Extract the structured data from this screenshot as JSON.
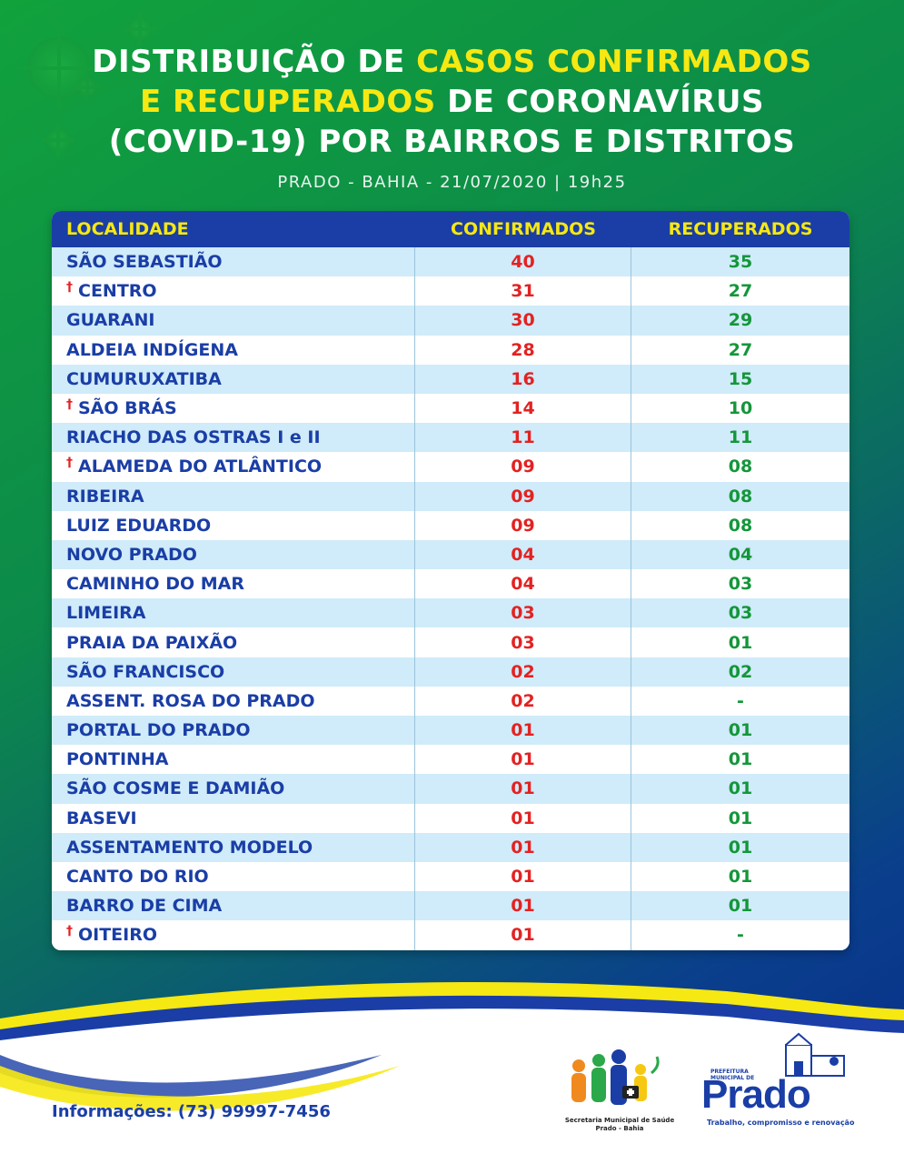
{
  "header": {
    "title_part1": "DISTRIBUIÇÃO DE ",
    "title_hl1": "CASOS CONFIRMADOS",
    "title_hl2": "E RECUPERADOS",
    "title_part2": " DE CORONAVÍRUS",
    "title_line3": "(COVID-19) POR BAIRROS E DISTRITOS",
    "subtitle": "PRADO - BAHIA - 21/07/2020 | 19h25"
  },
  "table": {
    "columns": [
      "LOCALIDADE",
      "CONFIRMADOS",
      "RECUPERADOS"
    ],
    "cross_symbol": "†",
    "rows": [
      {
        "name": "SÃO SEBASTIÃO",
        "confirmed": "40",
        "recovered": "35",
        "death": false
      },
      {
        "name": "CENTRO",
        "confirmed": "31",
        "recovered": "27",
        "death": true
      },
      {
        "name": "GUARANI",
        "confirmed": "30",
        "recovered": "29",
        "death": false
      },
      {
        "name": "ALDEIA INDÍGENA",
        "confirmed": "28",
        "recovered": "27",
        "death": false
      },
      {
        "name": "CUMURUXATIBA",
        "confirmed": "16",
        "recovered": "15",
        "death": false
      },
      {
        "name": "SÃO BRÁS",
        "confirmed": "14",
        "recovered": "10",
        "death": true
      },
      {
        "name": "RIACHO DAS OSTRAS I e II",
        "confirmed": "11",
        "recovered": "11",
        "death": false
      },
      {
        "name": "ALAMEDA DO ATLÂNTICO",
        "confirmed": "09",
        "recovered": "08",
        "death": true
      },
      {
        "name": "RIBEIRA",
        "confirmed": "09",
        "recovered": "08",
        "death": false
      },
      {
        "name": "LUIZ EDUARDO",
        "confirmed": "09",
        "recovered": "08",
        "death": false
      },
      {
        "name": "NOVO PRADO",
        "confirmed": "04",
        "recovered": "04",
        "death": false
      },
      {
        "name": "CAMINHO DO MAR",
        "confirmed": "04",
        "recovered": "03",
        "death": false
      },
      {
        "name": "LIMEIRA",
        "confirmed": "03",
        "recovered": "03",
        "death": false
      },
      {
        "name": "PRAIA DA PAIXÃO",
        "confirmed": "03",
        "recovered": "01",
        "death": false
      },
      {
        "name": "SÃO FRANCISCO",
        "confirmed": "02",
        "recovered": "02",
        "death": false
      },
      {
        "name": "ASSENT. ROSA DO PRADO",
        "confirmed": "02",
        "recovered": "-",
        "death": false
      },
      {
        "name": "PORTAL DO PRADO",
        "confirmed": "01",
        "recovered": "01",
        "death": false
      },
      {
        "name": "PONTINHA",
        "confirmed": "01",
        "recovered": "01",
        "death": false
      },
      {
        "name": "SÃO COSME E DAMIÃO",
        "confirmed": "01",
        "recovered": "01",
        "death": false
      },
      {
        "name": "BASEVI",
        "confirmed": "01",
        "recovered": "01",
        "death": false
      },
      {
        "name": "ASSENTAMENTO MODELO",
        "confirmed": "01",
        "recovered": "01",
        "death": false
      },
      {
        "name": "CANTO DO RIO",
        "confirmed": "01",
        "recovered": "01",
        "death": false
      },
      {
        "name": "BARRO DE CIMA",
        "confirmed": "01",
        "recovered": "01",
        "death": false
      },
      {
        "name": "OITEIRO",
        "confirmed": "01",
        "recovered": "-",
        "death": true
      }
    ]
  },
  "footer": {
    "contact": "Informações: (73) 99997-7456",
    "secretaria_line1": "Secretaria Municipal de Saúde",
    "secretaria_line2": "Prado - Bahia",
    "prefeitura_line1": "PREFEITURA",
    "prefeitura_line2": "MUNICIPAL DE",
    "prado_word": "Prado",
    "prado_tagline": "Trabalho, compromisso e renovação"
  },
  "colors": {
    "title_highlight": "#f6e812",
    "table_header": "#1a3ea6",
    "confirmed": "#e32222",
    "recovered": "#14963a",
    "row_alt": "#d0ebf9"
  }
}
